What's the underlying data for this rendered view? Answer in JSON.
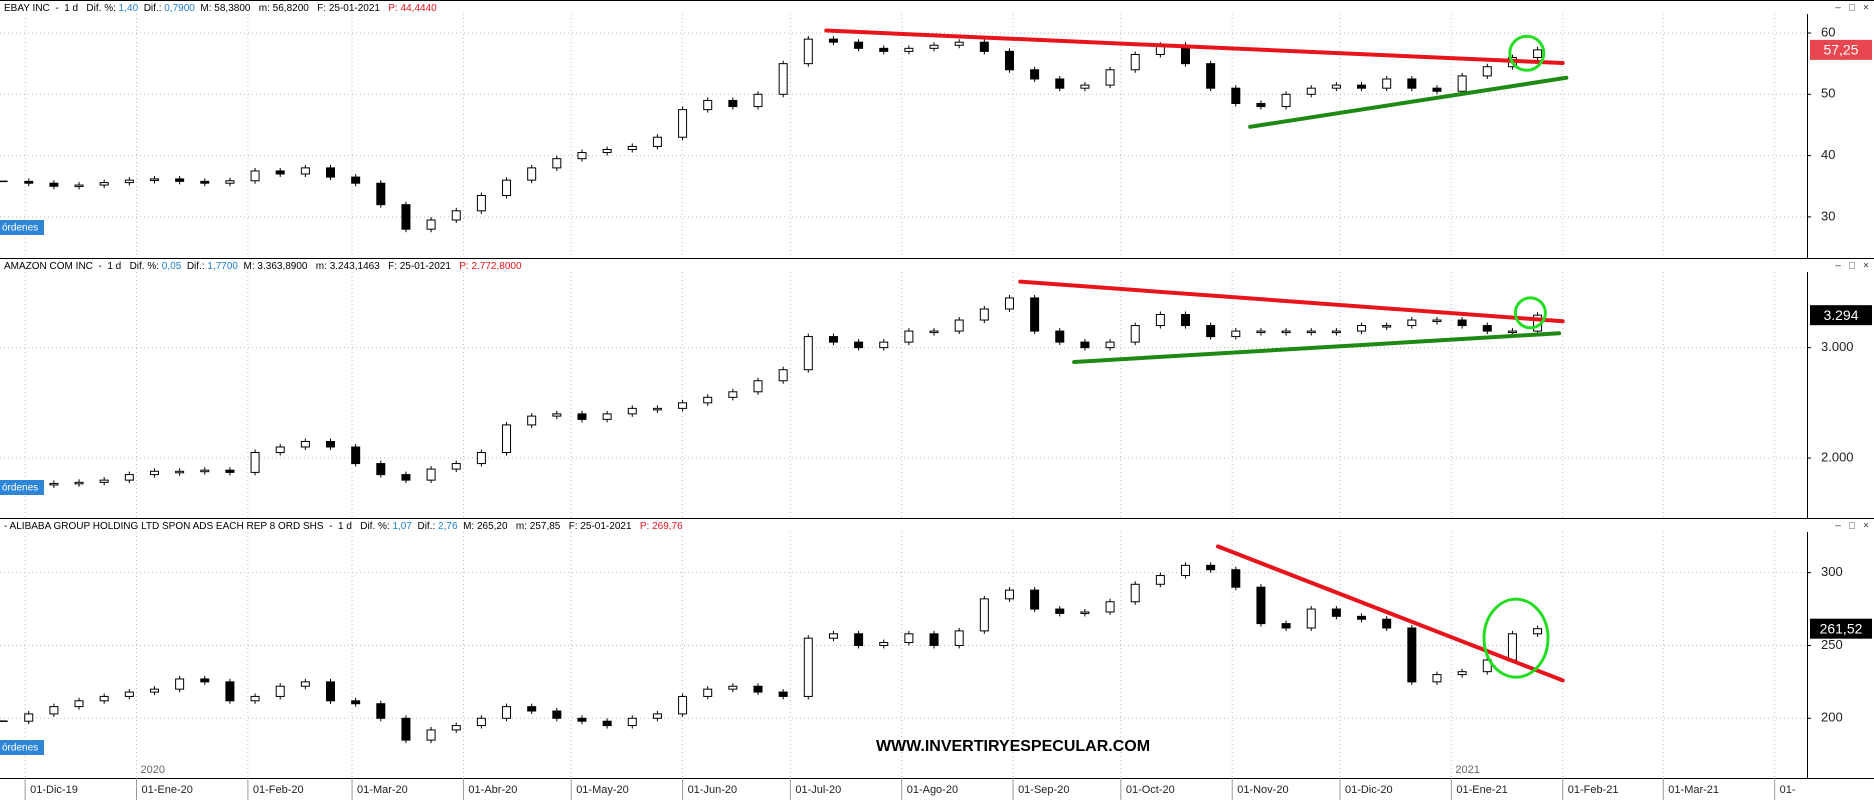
{
  "chart_data": [
    {
      "type": "candlestick",
      "header": [
        {
          "text": "EBAY INC  -  1 d   Dif. %: ",
          "color": "#000000"
        },
        {
          "text": "1,40",
          "color": "#1e7fd0"
        },
        {
          "text": "  Dif.: ",
          "color": "#000000"
        },
        {
          "text": "0,7900",
          "color": "#1e7fd0"
        },
        {
          "text": "  M: 58,3800   m: 56,8200   F: 25-01-2021   ",
          "color": "#000000"
        },
        {
          "text": "P: 44,4440",
          "color": "#e8141c"
        }
      ],
      "orders_label": "órdenes",
      "xlim": [
        "2019-11-24",
        "2021-04-10"
      ],
      "x": [
        "2019-11-25",
        "2019-12-02",
        "2019-12-09",
        "2019-12-16",
        "2019-12-23",
        "2019-12-30",
        "2020-01-06",
        "2020-01-13",
        "2020-01-20",
        "2020-01-27",
        "2020-02-03",
        "2020-02-10",
        "2020-02-17",
        "2020-02-24",
        "2020-03-02",
        "2020-03-09",
        "2020-03-16",
        "2020-03-23",
        "2020-03-30",
        "2020-04-06",
        "2020-04-13",
        "2020-04-20",
        "2020-04-27",
        "2020-05-04",
        "2020-05-11",
        "2020-05-18",
        "2020-05-25",
        "2020-06-01",
        "2020-06-08",
        "2020-06-15",
        "2020-06-22",
        "2020-06-29",
        "2020-07-06",
        "2020-07-13",
        "2020-07-20",
        "2020-07-27",
        "2020-08-03",
        "2020-08-10",
        "2020-08-17",
        "2020-08-24",
        "2020-08-31",
        "2020-09-07",
        "2020-09-14",
        "2020-09-21",
        "2020-09-28",
        "2020-10-05",
        "2020-10-12",
        "2020-10-19",
        "2020-10-26",
        "2020-11-02",
        "2020-11-09",
        "2020-11-16",
        "2020-11-23",
        "2020-11-30",
        "2020-12-07",
        "2020-12-14",
        "2020-12-21",
        "2020-12-28",
        "2021-01-04",
        "2021-01-11",
        "2021-01-18",
        "2021-01-25"
      ],
      "values": [
        35.8,
        35.5,
        35.0,
        35.2,
        35.6,
        36.0,
        36.2,
        35.8,
        35.5,
        35.9,
        37.5,
        37.0,
        38.0,
        36.5,
        35.5,
        32.0,
        28.0,
        29.5,
        31.0,
        33.5,
        36.0,
        38.0,
        39.5,
        40.5,
        41.0,
        41.5,
        43.0,
        47.5,
        49.0,
        48.0,
        50.0,
        55.0,
        59.0,
        58.5,
        57.5,
        57.0,
        57.5,
        58.0,
        58.5,
        57.0,
        54.0,
        52.5,
        51.0,
        51.5,
        54.0,
        56.5,
        58.0,
        55.0,
        51.0,
        48.5,
        48.0,
        50.0,
        51.0,
        51.5,
        51.0,
        52.5,
        51.0,
        50.5,
        53.0,
        54.5,
        56.0,
        57.25
      ],
      "ylim": [
        23.3,
        63.1
      ],
      "yticks": [
        30,
        40,
        50,
        60
      ],
      "grid": true,
      "last_price": {
        "value": 57.25,
        "label": "57,25",
        "color": "#e8474f"
      },
      "trendlines": [
        {
          "color": "#e8141c",
          "x": [
            "2020-07-11",
            "2021-02-01"
          ],
          "y": [
            60.4,
            55.1
          ]
        },
        {
          "color": "#1e8a14",
          "x": [
            "2020-11-06",
            "2021-02-02"
          ],
          "y": [
            44.7,
            52.7
          ]
        }
      ],
      "circles": [
        {
          "color": "#22dd22",
          "x": "2021-01-22",
          "y": 56.7
        }
      ]
    },
    {
      "type": "candlestick",
      "header": [
        {
          "text": "AMAZON COM INC  -  1 d   Dif. %: ",
          "color": "#000000"
        },
        {
          "text": "0,05",
          "color": "#1e7fd0"
        },
        {
          "text": "  Dif.: ",
          "color": "#000000"
        },
        {
          "text": "1,7700",
          "color": "#1e7fd0"
        },
        {
          "text": "  M: 3.363,8900   m: 3.243,1463   F: 25-01-2021   ",
          "color": "#000000"
        },
        {
          "text": "P: 2.772,8000",
          "color": "#e8141c"
        }
      ],
      "orders_label": "órdenes",
      "xlim": [
        "2019-11-24",
        "2021-04-10"
      ],
      "x": [
        "2019-11-25",
        "2019-12-02",
        "2019-12-09",
        "2019-12-16",
        "2019-12-23",
        "2019-12-30",
        "2020-01-06",
        "2020-01-13",
        "2020-01-20",
        "2020-01-27",
        "2020-02-03",
        "2020-02-10",
        "2020-02-17",
        "2020-02-24",
        "2020-03-02",
        "2020-03-09",
        "2020-03-16",
        "2020-03-23",
        "2020-03-30",
        "2020-04-06",
        "2020-04-13",
        "2020-04-20",
        "2020-04-27",
        "2020-05-04",
        "2020-05-11",
        "2020-05-18",
        "2020-05-25",
        "2020-06-01",
        "2020-06-08",
        "2020-06-15",
        "2020-06-22",
        "2020-06-29",
        "2020-07-06",
        "2020-07-13",
        "2020-07-20",
        "2020-07-27",
        "2020-08-03",
        "2020-08-10",
        "2020-08-17",
        "2020-08-24",
        "2020-08-31",
        "2020-09-07",
        "2020-09-14",
        "2020-09-21",
        "2020-09-28",
        "2020-10-05",
        "2020-10-12",
        "2020-10-19",
        "2020-10-26",
        "2020-11-02",
        "2020-11-09",
        "2020-11-16",
        "2020-11-23",
        "2020-11-30",
        "2020-12-07",
        "2020-12-14",
        "2020-12-21",
        "2020-12-28",
        "2021-01-04",
        "2021-01-11",
        "2021-01-18",
        "2021-01-25"
      ],
      "values": [
        1770,
        1760,
        1770,
        1780,
        1800,
        1850,
        1880,
        1880,
        1890,
        1870,
        2050,
        2100,
        2150,
        2100,
        1950,
        1850,
        1800,
        1900,
        1950,
        2050,
        2300,
        2380,
        2400,
        2350,
        2400,
        2450,
        2450,
        2500,
        2550,
        2600,
        2700,
        2800,
        3100,
        3050,
        3000,
        3050,
        3150,
        3150,
        3250,
        3350,
        3450,
        3150,
        3050,
        3000,
        3050,
        3200,
        3300,
        3200,
        3100,
        3150,
        3150,
        3150,
        3150,
        3150,
        3200,
        3200,
        3250,
        3250,
        3200,
        3150,
        3150,
        3294
      ],
      "ylim": [
        1457,
        3685
      ],
      "yticks": [
        {
          "value": 2000,
          "label": "2.000"
        },
        {
          "value": 3000,
          "label": "3.000"
        }
      ],
      "grid": true,
      "last_price": {
        "value": 3294,
        "label": "3.294",
        "color": "#000000"
      },
      "trendlines": [
        {
          "color": "#e8141c",
          "x": [
            "2020-09-03",
            "2021-02-01"
          ],
          "y": [
            3598,
            3239
          ]
        },
        {
          "color": "#1e8a14",
          "x": [
            "2020-09-18",
            "2021-01-31"
          ],
          "y": [
            2870,
            3130
          ]
        }
      ],
      "circles": [
        {
          "color": "#22dd22",
          "x": "2021-01-23",
          "y": 3315
        }
      ]
    },
    {
      "type": "candlestick",
      "header": [
        {
          "text": "- ALIBABA GROUP HOLDING LTD SPON ADS EACH REP 8 ORD SHS  -  1 d   Dif. %: ",
          "color": "#000000"
        },
        {
          "text": "1,07",
          "color": "#1e7fd0"
        },
        {
          "text": "  Dif.: ",
          "color": "#000000"
        },
        {
          "text": "2,76",
          "color": "#1e7fd0"
        },
        {
          "text": "  M: 265,20   m: 257,85   F: 25-01-2021   ",
          "color": "#000000"
        },
        {
          "text": "P: 269,76",
          "color": "#e8141c"
        }
      ],
      "orders_label": "órdenes",
      "xlim": [
        "2019-11-24",
        "2021-04-10"
      ],
      "x": [
        "2019-11-25",
        "2019-12-02",
        "2019-12-09",
        "2019-12-16",
        "2019-12-23",
        "2019-12-30",
        "2020-01-06",
        "2020-01-13",
        "2020-01-20",
        "2020-01-27",
        "2020-02-03",
        "2020-02-10",
        "2020-02-17",
        "2020-02-24",
        "2020-03-02",
        "2020-03-09",
        "2020-03-16",
        "2020-03-23",
        "2020-03-30",
        "2020-04-06",
        "2020-04-13",
        "2020-04-20",
        "2020-04-27",
        "2020-05-04",
        "2020-05-11",
        "2020-05-18",
        "2020-05-25",
        "2020-06-01",
        "2020-06-08",
        "2020-06-15",
        "2020-06-22",
        "2020-06-29",
        "2020-07-06",
        "2020-07-13",
        "2020-07-20",
        "2020-07-27",
        "2020-08-03",
        "2020-08-10",
        "2020-08-17",
        "2020-08-24",
        "2020-08-31",
        "2020-09-07",
        "2020-09-14",
        "2020-09-21",
        "2020-09-28",
        "2020-10-05",
        "2020-10-12",
        "2020-10-19",
        "2020-10-26",
        "2020-11-02",
        "2020-11-09",
        "2020-11-16",
        "2020-11-23",
        "2020-11-30",
        "2020-12-07",
        "2020-12-14",
        "2020-12-21",
        "2020-12-28",
        "2021-01-04",
        "2021-01-11",
        "2021-01-18",
        "2021-01-25"
      ],
      "values": [
        198,
        203,
        208,
        212,
        215,
        218,
        220,
        227,
        225,
        212,
        215,
        222,
        225,
        212,
        210,
        200,
        185,
        192,
        195,
        200,
        208,
        205,
        200,
        198,
        195,
        200,
        203,
        215,
        220,
        222,
        218,
        215,
        255,
        258,
        250,
        252,
        258,
        250,
        260,
        282,
        288,
        275,
        272,
        273,
        280,
        292,
        298,
        305,
        302,
        290,
        265,
        262,
        275,
        270,
        268,
        262,
        225,
        230,
        232,
        240,
        258,
        261.52
      ],
      "ylim": [
        159,
        327.9
      ],
      "yticks": [
        200,
        250,
        300
      ],
      "grid": true,
      "last_price": {
        "value": 261.52,
        "label": "261,52",
        "color": "#000000"
      },
      "trendlines": [
        {
          "color": "#e8141c",
          "x": [
            "2020-10-28",
            "2021-02-01"
          ],
          "y": [
            318,
            226
          ]
        }
      ],
      "circles": [
        {
          "color": "#22dd22",
          "x": "2021-01-19",
          "y": 255
        }
      ],
      "xticks": [
        {
          "value": "2019-12-01",
          "label": "01-Dic-19"
        },
        {
          "value": "2020-01-01",
          "label": "01-Ene-20"
        },
        {
          "value": "2020-02-01",
          "label": "01-Feb-20"
        },
        {
          "value": "2020-03-01",
          "label": "01-Mar-20"
        },
        {
          "value": "2020-04-01",
          "label": "01-Abr-20"
        },
        {
          "value": "2020-05-01",
          "label": "01-May-20"
        },
        {
          "value": "2020-06-01",
          "label": "01-Jun-20"
        },
        {
          "value": "2020-07-01",
          "label": "01-Jul-20"
        },
        {
          "value": "2020-08-01",
          "label": "01-Ago-20"
        },
        {
          "value": "2020-09-01",
          "label": "01-Sep-20"
        },
        {
          "value": "2020-10-01",
          "label": "01-Oct-20"
        },
        {
          "value": "2020-11-01",
          "label": "01-Nov-20"
        },
        {
          "value": "2020-12-01",
          "label": "01-Dic-20"
        },
        {
          "value": "2021-01-01",
          "label": "01-Ene-21"
        },
        {
          "value": "2021-02-01",
          "label": "01-Feb-21"
        },
        {
          "value": "2021-03-01",
          "label": "01-Mar-21"
        },
        {
          "value": "2021-04-01",
          "label": "01-"
        }
      ],
      "year_labels": [
        {
          "value": "2020-01-01",
          "label": "2020"
        },
        {
          "value": "2021-01-01",
          "label": "2021"
        }
      ]
    }
  ],
  "watermark": "WWW.INVERTIRYESPECULAR.COM"
}
